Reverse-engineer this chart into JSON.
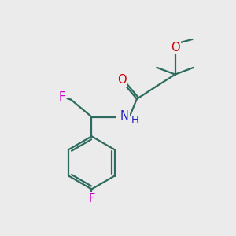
{
  "bg_color": "#ebebeb",
  "bond_color": "#2d6b5e",
  "atom_colors": {
    "O": "#cc0000",
    "N": "#2020bb",
    "F": "#cc00cc",
    "C": "#000000"
  },
  "bond_width": 1.6,
  "font_size": 10.5,
  "figsize": [
    3.0,
    3.0
  ],
  "dpi": 100
}
